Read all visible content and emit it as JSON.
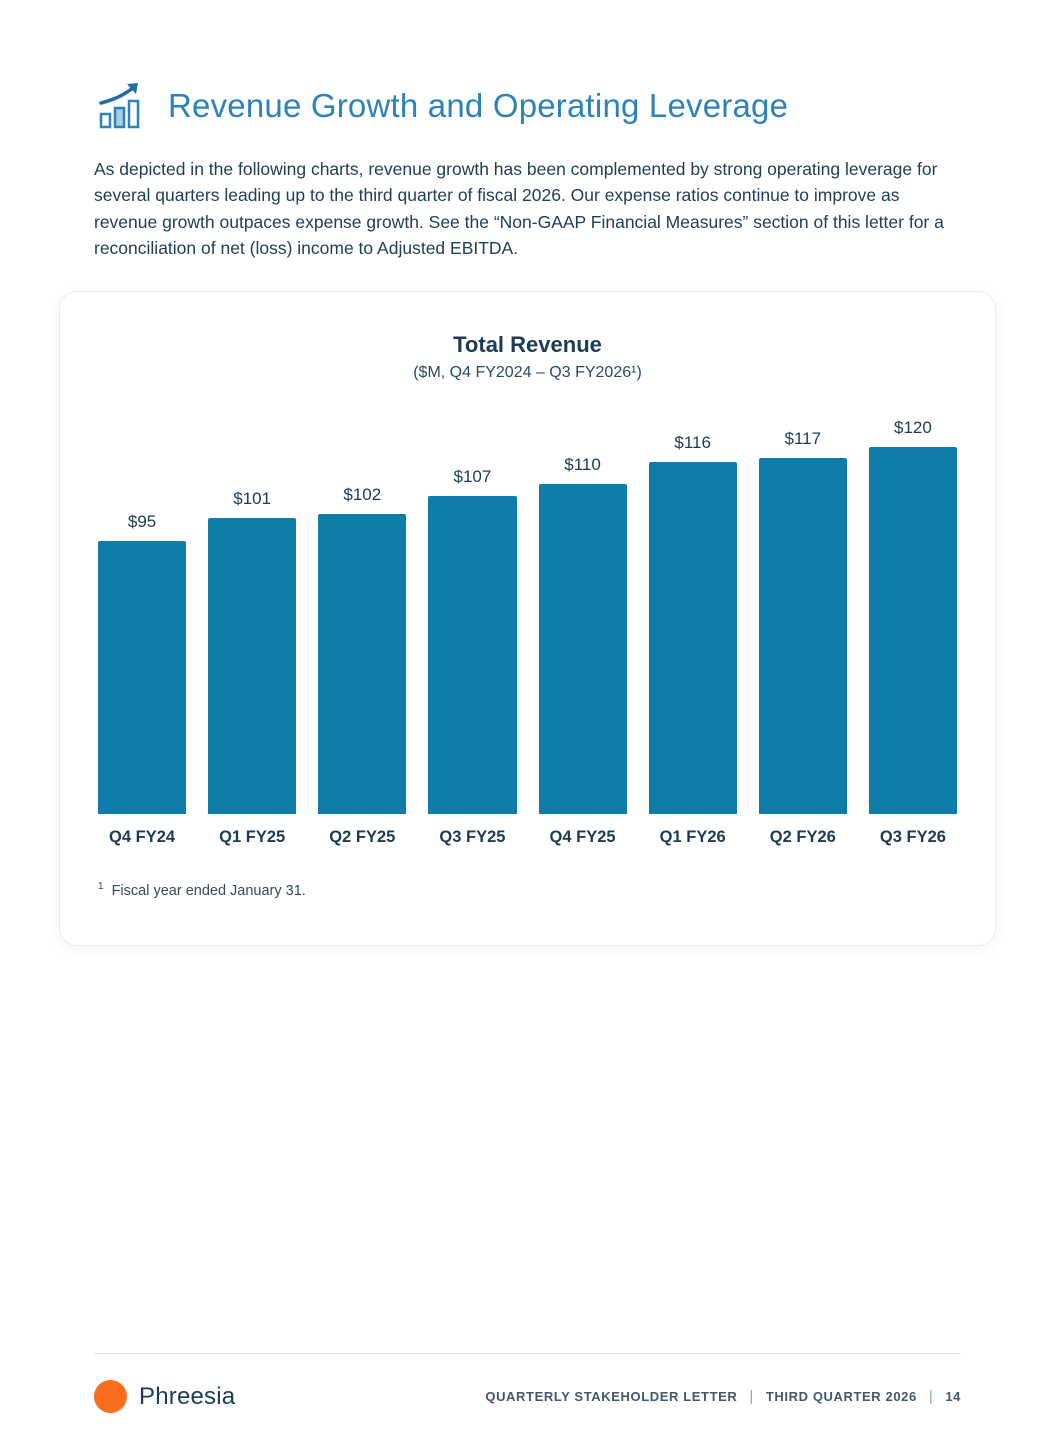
{
  "page": {
    "header": {
      "title": "Revenue Growth and Operating Leverage",
      "icon": "bar-chart-growth-icon"
    },
    "intro": "As depicted in the following charts, revenue growth has been complemented by strong operating leverage for several quarters leading up to the third quarter of fiscal 2026. Our expense ratios continue to improve as revenue growth outpaces expense growth. See the “Non-GAAP Financial Measures” section of this letter for a reconciliation of net (loss) income to Adjusted EBITDA.",
    "footnote": {
      "marker": "1",
      "text": "Fiscal year ended January 31."
    },
    "footer": {
      "brand": "Phreesia",
      "left_label": "QUARTERLY STAKEHOLDER LETTER",
      "mid_label": "THIRD QUARTER 2026",
      "page_number": "14",
      "separator": "|"
    }
  },
  "chart_data": {
    "type": "bar",
    "title": "Total Revenue",
    "subtitle": "($M, Q4 FY2024 – Q3 FY2026¹)",
    "categories": [
      "Q4 FY24",
      "Q1 FY25",
      "Q2 FY25",
      "Q3 FY25",
      "Q4 FY25",
      "Q1 FY26",
      "Q2 FY26",
      "Q3 FY26"
    ],
    "values": [
      95,
      101,
      102,
      107,
      110,
      116,
      117,
      120
    ],
    "value_labels": [
      "$95",
      "$101",
      "$102",
      "$107",
      "$110",
      "$116",
      "$117",
      "$120"
    ],
    "xlabel": "",
    "ylabel": "",
    "grid": false,
    "legend": false,
    "bar_color": "#0e7ca8"
  },
  "colors": {
    "accent_blue": "#2e82ba",
    "bar_blue": "#0e7ca8",
    "text_navy": "#1d3b53",
    "brand_orange": "#f86e1d"
  }
}
